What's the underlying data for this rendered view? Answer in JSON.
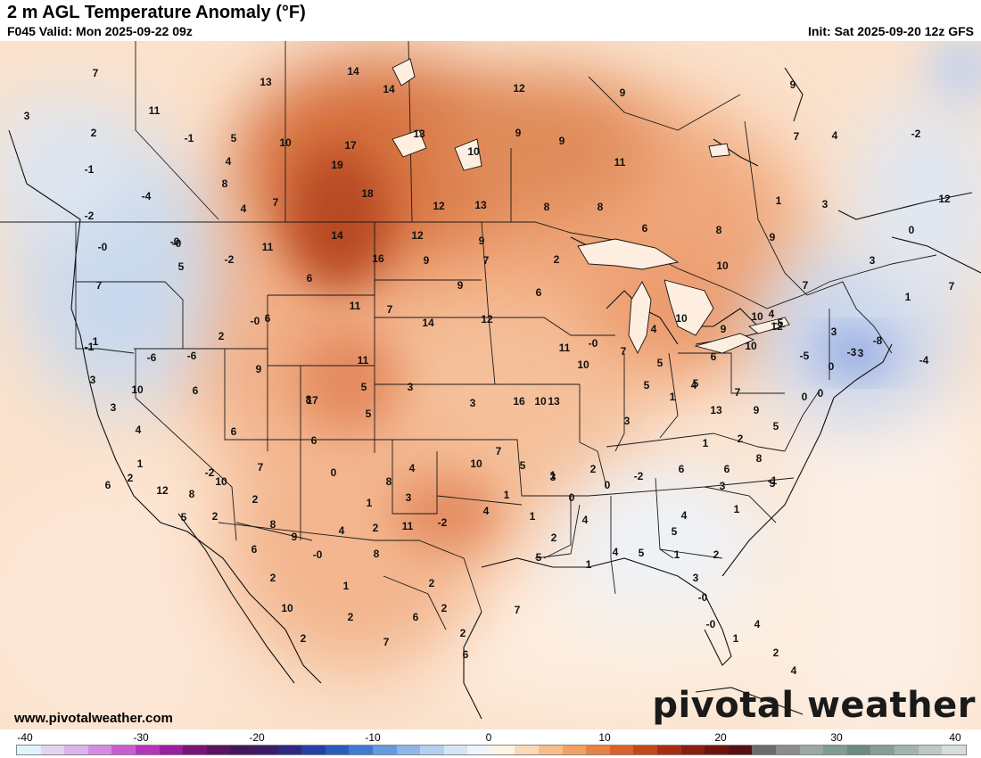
{
  "header": {
    "title": "2 m AGL Temperature Anomaly (°F)",
    "valid": "F045 Valid: Mon 2025-09-22 09z",
    "init": "Init: Sat 2025-09-20 12z GFS"
  },
  "footer": {
    "site": "www.pivotalweather.com",
    "brand": "pivotal weather"
  },
  "colorbar": {
    "labels": [
      "-40",
      "-30",
      "-20",
      "-10",
      "0",
      "10",
      "20",
      "30",
      "40"
    ],
    "colors": [
      "#dff4fb",
      "#e4d4f2",
      "#ddb3ec",
      "#d58ce0",
      "#c85fcf",
      "#b536ba",
      "#9a1f9e",
      "#7a1578",
      "#5c1460",
      "#46165a",
      "#3a1d66",
      "#2d2a80",
      "#2540a8",
      "#2a5cc0",
      "#3f7ad0",
      "#6699dd",
      "#8fb6e6",
      "#b5cfee",
      "#d6e4f5",
      "#eef4fa",
      "#fdf2e6",
      "#fbd9b8",
      "#f7bd8a",
      "#f2a064",
      "#e88242",
      "#d9632a",
      "#c4461b",
      "#a82e13",
      "#8a1f0f",
      "#6d150d",
      "#571010",
      "#6b6b6b",
      "#8c8c8c",
      "#9aa7a2",
      "#7f9c8f",
      "#6b8c7f",
      "#889e96",
      "#a3b3ad",
      "#bcc8c3",
      "#d6dcd9"
    ]
  },
  "map": {
    "anomaly_labels": [
      "7",
      "13",
      "14",
      "14",
      "12",
      "9",
      "9",
      "3",
      "11",
      "2",
      "-1",
      "5",
      "10",
      "17",
      "13",
      "10",
      "9",
      "9",
      "7",
      "4",
      "-1",
      "19",
      "11",
      "4",
      "8",
      "-4",
      "-2",
      "4",
      "7",
      "18",
      "12",
      "13",
      "8",
      "8",
      "1",
      "3",
      "-2",
      "-0",
      "14",
      "12",
      "9",
      "6",
      "8",
      "9",
      "-0",
      "-2",
      "11",
      "16",
      "9",
      "7",
      "2",
      "10",
      "7",
      "4",
      "3",
      "0",
      "12",
      "7",
      "5",
      "-0",
      "7",
      "1",
      "-4",
      "-1",
      "-6",
      "-6",
      "-0",
      "6",
      "6",
      "11",
      "14",
      "9",
      "7",
      "12",
      "6",
      "4",
      "10",
      "9",
      "12",
      "10",
      "3",
      "-5",
      "-3",
      "-8",
      "1",
      "3",
      "10",
      "6",
      "-5",
      "-0",
      "7",
      "5",
      "5",
      "6",
      "10",
      "11",
      "9",
      "2",
      "10",
      "10",
      "5",
      "17",
      "3",
      "3",
      "16",
      "13",
      "11",
      "3",
      "4",
      "5",
      "8",
      "7",
      "6",
      "0",
      "1",
      "3",
      "8",
      "4",
      "10",
      "7",
      "5",
      "3",
      "2",
      "3",
      "5",
      "1",
      "4",
      "13",
      "7",
      "9",
      "5",
      "6",
      "1",
      "2",
      "12",
      "8",
      "-2",
      "6",
      "10",
      "5",
      "2",
      "2",
      "8",
      "9",
      "4",
      "8",
      "11",
      "-2",
      "4",
      "1",
      "1",
      "1",
      "0",
      "4",
      "0",
      "-2",
      "6",
      "1",
      "6",
      "8",
      "5",
      "6",
      "2",
      "10",
      "2",
      "-0",
      "1",
      "2",
      "2",
      "7",
      "6",
      "2",
      "2",
      "2",
      "6",
      "7",
      "5",
      "2",
      "1",
      "4",
      "5",
      "5",
      "4",
      "1",
      "3",
      "2",
      "1",
      "3",
      "-0",
      "-0",
      "1",
      "4",
      "2",
      "4",
      "-1",
      "2",
      "0",
      "0",
      "0",
      "3"
    ]
  }
}
